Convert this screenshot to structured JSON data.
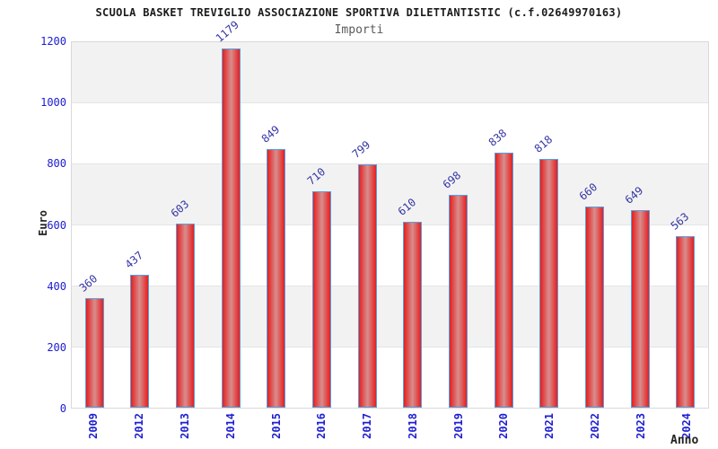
{
  "header": {
    "title": "SCUOLA BASKET TREVIGLIO ASSOCIAZIONE SPORTIVA DILETTANTISTIC (c.f.02649970163)",
    "subtitle": "Importi"
  },
  "axes": {
    "y_label": "Euro",
    "x_label": "Anno"
  },
  "chart_data": {
    "type": "bar",
    "title": "SCUOLA BASKET TREVIGLIO ASSOCIAZIONE SPORTIVA DILETTANTISTIC (c.f.02649970163)",
    "subtitle": "Importi",
    "xlabel": "Anno",
    "ylabel": "Euro",
    "categories": [
      "2009",
      "2012",
      "2013",
      "2014",
      "2015",
      "2016",
      "2017",
      "2018",
      "2019",
      "2020",
      "2021",
      "2022",
      "2023",
      "2024"
    ],
    "values": [
      360,
      437,
      603,
      1179,
      849,
      710,
      799,
      610,
      698,
      838,
      818,
      660,
      649,
      563
    ],
    "ylim": [
      0,
      1200
    ],
    "y_ticks": [
      0,
      200,
      400,
      600,
      800,
      1000,
      1200
    ],
    "grid": "horizontal-bands",
    "legend": "none",
    "colors": {
      "bar_edge": "#e61e1e",
      "bar_center": "#d88e8e",
      "bar_border": "#56a0e0",
      "value_label": "#3434a4",
      "tick_label": "#1b1bd1",
      "band": "#f2f2f2",
      "band_alt": "#ffffff"
    }
  }
}
